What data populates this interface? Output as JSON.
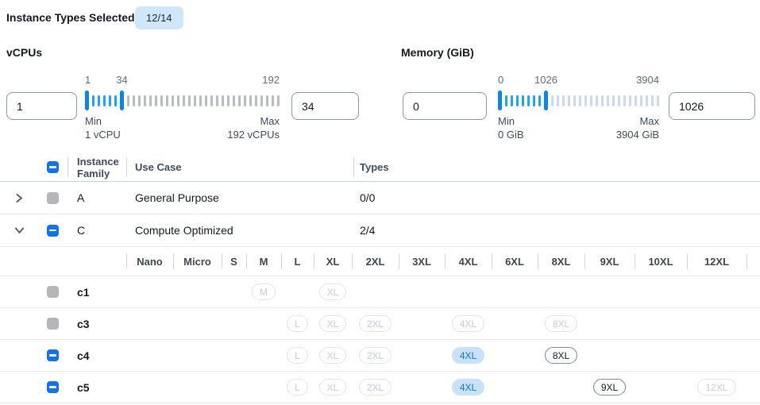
{
  "top": {
    "label": "Instance Types Selected:",
    "badge": "12/14"
  },
  "filters": [
    {
      "id": "vcpus",
      "title": "vCPUs",
      "min_value": "1",
      "max_value": "34",
      "scale": {
        "start": "1",
        "end": "34",
        "max": "192"
      },
      "min_caption": "Min",
      "min_sub": "1 vCPU",
      "max_caption": "Max",
      "max_sub": "192 vCPUs",
      "ticks": {
        "in_range": 5,
        "out_range": 28
      }
    },
    {
      "id": "memory",
      "title": "Memory (GiB)",
      "min_value": "0",
      "max_value": "1026",
      "scale": {
        "start": "0",
        "end": "1026",
        "max": "3904"
      },
      "min_caption": "Min",
      "min_sub": "0 GiB",
      "max_caption": "Max",
      "max_sub": "3904 GiB",
      "ticks": {
        "in_range": 7,
        "out_range": 20
      }
    }
  ],
  "table": {
    "header": {
      "family": "Instance Family",
      "use_case": "Use Case",
      "types": "Types"
    },
    "size_columns": [
      "Nano",
      "Micro",
      "S",
      "M",
      "L",
      "XL",
      "2XL",
      "3XL",
      "4XL",
      "6XL",
      "8XL",
      "9XL",
      "10XL",
      "12XL"
    ],
    "rows": [
      {
        "kind": "family",
        "name": "A",
        "use_case": "General Purpose",
        "types": "0/0",
        "checkbox": "disabled",
        "chevron": "right"
      },
      {
        "kind": "family",
        "name": "C",
        "use_case": "Compute Optimized",
        "types": "2/4",
        "checkbox": "indeterminate",
        "chevron": "down"
      },
      {
        "kind": "size-header"
      },
      {
        "kind": "instance",
        "name": "c1",
        "checkbox": "disabled",
        "chips": [
          {
            "size": "M",
            "state": "disabled"
          },
          {
            "size": "XL",
            "state": "disabled"
          }
        ]
      },
      {
        "kind": "instance",
        "name": "c3",
        "checkbox": "disabled",
        "chips": [
          {
            "size": "L",
            "state": "disabled"
          },
          {
            "size": "XL",
            "state": "disabled"
          },
          {
            "size": "2XL",
            "state": "disabled"
          },
          {
            "size": "4XL",
            "state": "disabled"
          },
          {
            "size": "8XL",
            "state": "disabled"
          }
        ]
      },
      {
        "kind": "instance",
        "name": "c4",
        "checkbox": "indeterminate",
        "chips": [
          {
            "size": "L",
            "state": "disabled"
          },
          {
            "size": "XL",
            "state": "disabled"
          },
          {
            "size": "2XL",
            "state": "disabled"
          },
          {
            "size": "4XL",
            "state": "selected"
          },
          {
            "size": "8XL",
            "state": "available"
          }
        ]
      },
      {
        "kind": "instance",
        "name": "c5",
        "checkbox": "indeterminate",
        "chips": [
          {
            "size": "L",
            "state": "disabled"
          },
          {
            "size": "XL",
            "state": "disabled"
          },
          {
            "size": "2XL",
            "state": "disabled"
          },
          {
            "size": "4XL",
            "state": "selected"
          },
          {
            "size": "9XL",
            "state": "available"
          },
          {
            "size": "12XL",
            "state": "disabled"
          }
        ]
      }
    ]
  },
  "colors": {
    "accent_blue": "#1673e6",
    "badge_bg": "#cfe6fb",
    "slider_handle": "#0c85e8",
    "tick_active": "#22a2f2",
    "tick_inactive_vcpu": "#b8bdc3",
    "tick_inactive_mem": "#cdd9ec",
    "chip_selected_bg": "#c8e2fb",
    "chip_selected_text": "#1774e8",
    "chip_available_border": "#7f8b9a",
    "chip_disabled_border": "#e3e6e9",
    "chip_disabled_text": "#c8cdd4"
  }
}
